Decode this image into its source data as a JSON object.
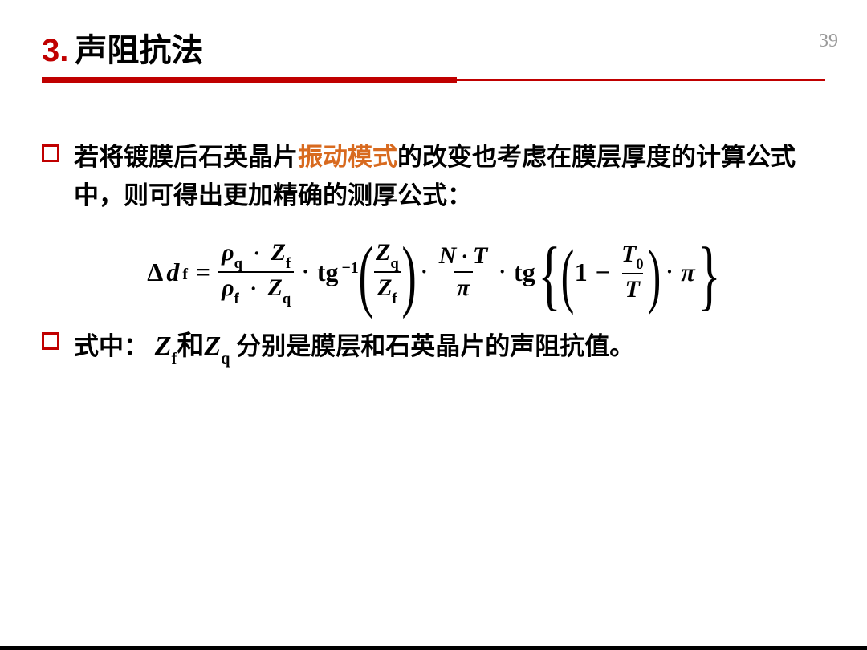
{
  "page_number": "39",
  "title": {
    "num": "3.",
    "text": "声阻抗法"
  },
  "colors": {
    "accent": "#c00000",
    "highlight": "#d86a1f",
    "text": "#000000",
    "pagenum": "#999999",
    "background": "#ffffff"
  },
  "bullets": {
    "b1": {
      "pre": "若将镀膜后石英晶片",
      "highlight": "振动模式",
      "post": "的改变也考虑在膜层厚度的计算公式中，则可得出更加精确的测厚公式："
    },
    "b2": {
      "pre": "式中：",
      "mid_zh": "和",
      "post": " 分别是膜层和石英晶片的声阻抗值。"
    }
  },
  "equation": {
    "lhs_delta": "Δ",
    "lhs_d": "d",
    "lhs_sub": "f",
    "eq": "=",
    "frac1": {
      "num_rho": "ρ",
      "num_sub": "q",
      "num_dot": "·",
      "num_Z": "Z",
      "num_Zsub": "f",
      "den_rho": "ρ",
      "den_sub": "f",
      "den_dot": "·",
      "den_Z": "Z",
      "den_Zsub": "q"
    },
    "dot": "·",
    "tg": "tg",
    "inv": "−1",
    "paren_l": "(",
    "paren_r": ")",
    "frac2": {
      "num_Z": "Z",
      "num_sub": "q",
      "den_Z": "Z",
      "den_sub": "f"
    },
    "frac3": {
      "num_N": "N",
      "num_dot": "·",
      "num_T": "T",
      "den_pi": "π"
    },
    "brace_l": "{",
    "brace_r": "}",
    "one": "1",
    "minus": "−",
    "frac4": {
      "num_T": "T",
      "num_sub": "0",
      "den_T": "T"
    },
    "pi": "π"
  },
  "inline": {
    "Zf_Z": "Z",
    "Zf_sub": "f",
    "Zq_Z": "Z",
    "Zq_sub": "q"
  }
}
